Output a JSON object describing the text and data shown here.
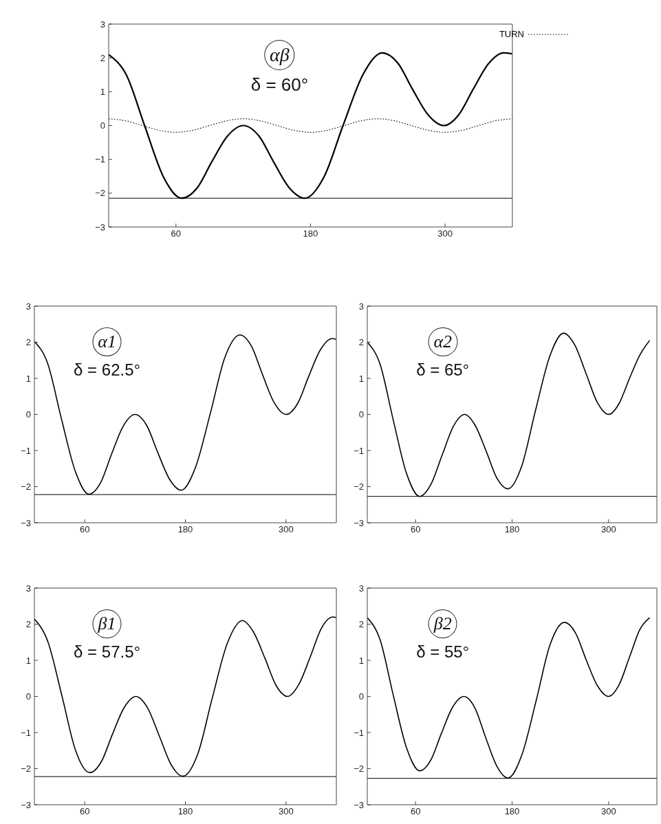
{
  "chart_data": [
    {
      "type": "line",
      "annotations": [
        "αβ",
        "δ = 60°"
      ],
      "xlim": [
        0,
        360
      ],
      "xticks": [
        60,
        180,
        300
      ],
      "ylim": [
        -3,
        3
      ],
      "yticks": [
        -3,
        -2,
        -1,
        0,
        1,
        2,
        3
      ],
      "legend": "top right",
      "series": [
        {
          "color": "#000000",
          "x": [
            0,
            16,
            32,
            49,
            65,
            79,
            92,
            106,
            120,
            134,
            147,
            161,
            175,
            192,
            209,
            227,
            244,
            258,
            271,
            285,
            299,
            312,
            325,
            339,
            352,
            360
          ],
          "values": [
            2.1,
            1.48,
            0.0,
            -1.53,
            -2.15,
            -1.84,
            -1.07,
            -0.31,
            0,
            -0.31,
            -1.07,
            -1.84,
            -2.15,
            -1.52,
            0,
            1.52,
            2.15,
            1.84,
            1.07,
            0.31,
            0,
            0.31,
            1.07,
            1.84,
            2.15,
            2.12
          ]
        },
        {
          "name": "TURN",
          "color": "#000000",
          "line_style": "dotted",
          "x": [
            0,
            15,
            30,
            45,
            60,
            75,
            90,
            105,
            120,
            135,
            150,
            165,
            180,
            195,
            210,
            225,
            240,
            255,
            270,
            285,
            300,
            315,
            330,
            345,
            360
          ],
          "values": [
            0.2,
            0.14,
            0,
            -0.14,
            -0.2,
            -0.14,
            0,
            0.14,
            0.2,
            0.14,
            0,
            -0.14,
            -0.2,
            -0.14,
            0,
            0.14,
            0.2,
            0.14,
            0,
            -0.14,
            -0.2,
            -0.14,
            0,
            0.14,
            0.2
          ]
        }
      ],
      "ref_lines": [
        {
          "axis": "y",
          "value": -2.15,
          "color": "#000000"
        }
      ]
    },
    {
      "type": "line",
      "annotations": [
        "α1",
        "δ = 62.5°"
      ],
      "xlim": [
        0,
        360
      ],
      "xticks": [
        60,
        180,
        300
      ],
      "ylim": [
        -3,
        3
      ],
      "yticks": [
        -3,
        -2,
        -1,
        0,
        1,
        2,
        3
      ],
      "series": [
        {
          "color": "#000000",
          "x": [
            0,
            16,
            32,
            49,
            65,
            79,
            92,
            106,
            120,
            134,
            147,
            161,
            175,
            192,
            210,
            227,
            245,
            259,
            272,
            286,
            300,
            314,
            327,
            341,
            355,
            360
          ],
          "values": [
            2.02,
            1.4,
            -0.1,
            -1.59,
            -2.21,
            -1.89,
            -1.1,
            -0.32,
            0,
            -0.31,
            -1.05,
            -1.79,
            -2.1,
            -1.47,
            0.05,
            1.57,
            2.2,
            1.88,
            1.1,
            0.32,
            0,
            0.31,
            1.05,
            1.79,
            2.1,
            2.08
          ]
        }
      ],
      "ref_lines": [
        {
          "axis": "y",
          "value": -2.22,
          "color": "#000000"
        }
      ]
    },
    {
      "type": "line",
      "annotations": [
        "α2",
        "δ = 65°"
      ],
      "xlim": [
        0,
        360
      ],
      "xticks": [
        60,
        180,
        300
      ],
      "ylim": [
        -3,
        3
      ],
      "yticks": [
        -3,
        -2,
        -1,
        0,
        1,
        2,
        3
      ],
      "series": [
        {
          "color": "#000000",
          "x": [
            0,
            16,
            32,
            49,
            65,
            79,
            93,
            107,
            121,
            134,
            148,
            161,
            175,
            192,
            209,
            227,
            244,
            258,
            272,
            286,
            300,
            313,
            326,
            339,
            351
          ],
          "values": [
            2.0,
            1.38,
            -0.13,
            -1.65,
            -2.27,
            -1.94,
            -1.13,
            -0.33,
            0,
            -0.3,
            -1.03,
            -1.76,
            -2.06,
            -1.43,
            0.1,
            1.62,
            2.25,
            1.92,
            1.13,
            0.33,
            0,
            0.3,
            1.0,
            1.65,
            2.05
          ]
        }
      ],
      "ref_lines": [
        {
          "axis": "y",
          "value": -2.27,
          "color": "#000000"
        }
      ]
    },
    {
      "type": "line",
      "annotations": [
        "β1",
        "δ = 57.5°"
      ],
      "xlim": [
        0,
        360
      ],
      "xticks": [
        60,
        180,
        300
      ],
      "ylim": [
        -3,
        3
      ],
      "yticks": [
        -3,
        -2,
        -1,
        0,
        1,
        2,
        3
      ],
      "series": [
        {
          "color": "#000000",
          "x": [
            0,
            16,
            33,
            49,
            66,
            80,
            93,
            107,
            121,
            135,
            149,
            163,
            177,
            195,
            212,
            230,
            248,
            261,
            275,
            288,
            302,
            315,
            329,
            342,
            356,
            360
          ],
          "values": [
            2.14,
            1.52,
            0.0,
            -1.49,
            -2.11,
            -1.8,
            -1.05,
            -0.31,
            0,
            -0.32,
            -1.1,
            -1.89,
            -2.21,
            -1.58,
            -0.05,
            1.47,
            2.1,
            1.79,
            1.05,
            0.31,
            0,
            0.32,
            1.1,
            1.88,
            2.2,
            2.18
          ]
        }
      ],
      "ref_lines": [
        {
          "axis": "y",
          "value": -2.22,
          "color": "#000000"
        }
      ]
    },
    {
      "type": "line",
      "annotations": [
        "β2",
        "δ = 55°"
      ],
      "xlim": [
        0,
        360
      ],
      "xticks": [
        60,
        180,
        300
      ],
      "ylim": [
        -3,
        3
      ],
      "yticks": [
        -3,
        -2,
        -1,
        0,
        1,
        2,
        3
      ],
      "series": [
        {
          "color": "#000000",
          "x": [
            0,
            16,
            32,
            49,
            65,
            79,
            92,
            106,
            120,
            134,
            147,
            161,
            175,
            192,
            210,
            227,
            245,
            259,
            272,
            286,
            300,
            313,
            326,
            339,
            351
          ],
          "values": [
            2.18,
            1.56,
            0.06,
            -1.44,
            -2.06,
            -1.76,
            -1.03,
            -0.3,
            0,
            -0.33,
            -1.13,
            -1.93,
            -2.26,
            -1.63,
            -0.11,
            1.42,
            2.05,
            1.75,
            1.02,
            0.3,
            0,
            0.32,
            1.09,
            1.86,
            2.18
          ]
        }
      ],
      "ref_lines": [
        {
          "axis": "y",
          "value": -2.27,
          "color": "#000000"
        }
      ]
    }
  ]
}
